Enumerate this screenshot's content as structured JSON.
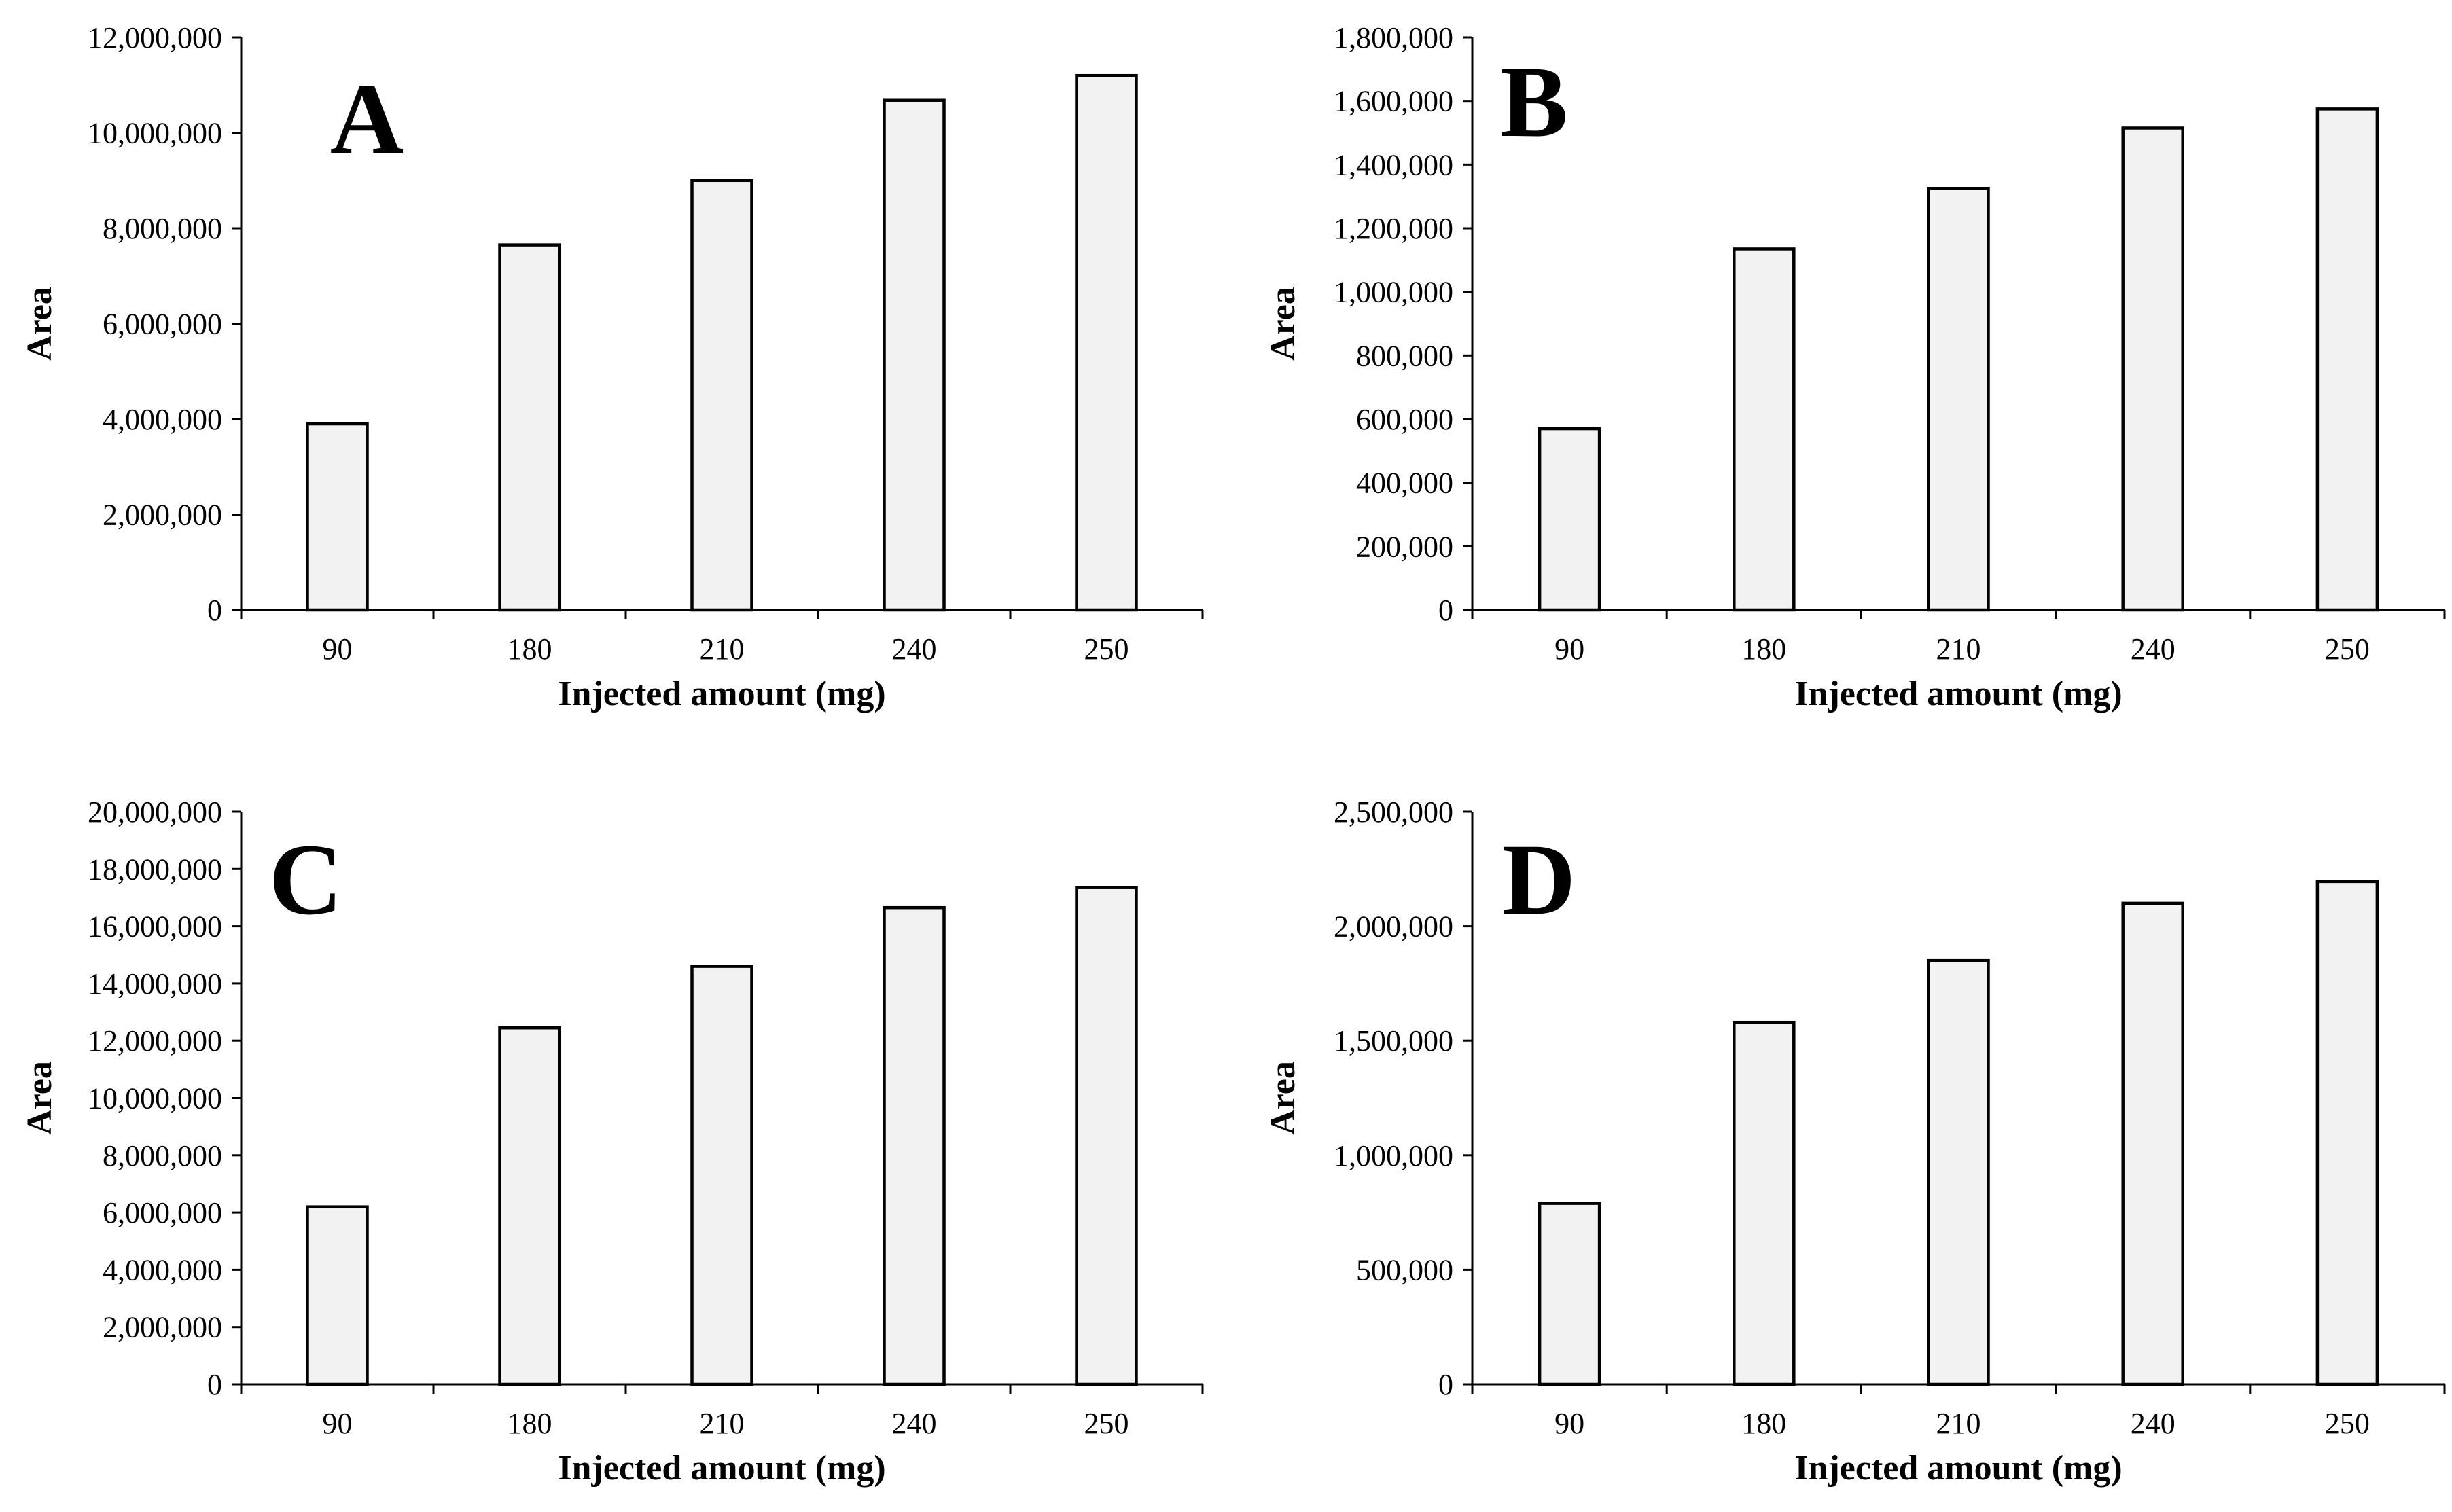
{
  "colors": {
    "bar_fill": "#f2f2f2",
    "bar_stroke": "#000000",
    "axis": "#000000",
    "background": "#ffffff"
  },
  "chart_data": [
    {
      "type": "bar",
      "panel_label": "A",
      "categories": [
        "90",
        "180",
        "210",
        "240",
        "250"
      ],
      "values": [
        3900000,
        7650000,
        9000000,
        10680000,
        11200000
      ],
      "xlabel": "Injected amount (mg)",
      "ylabel": "Area",
      "ylim": [
        0,
        12000000
      ],
      "yticks": [
        0,
        2000000,
        4000000,
        6000000,
        8000000,
        10000000,
        12000000
      ],
      "ytick_labels": [
        "0",
        "2,000,000",
        "4,000,000",
        "6,000,000",
        "8,000,000",
        "10,000,000",
        "12,000,000"
      ],
      "grid": false,
      "legend": "none"
    },
    {
      "type": "bar",
      "panel_label": "B",
      "categories": [
        "90",
        "180",
        "210",
        "240",
        "250"
      ],
      "values": [
        570000,
        1135000,
        1325000,
        1515000,
        1575000
      ],
      "xlabel": "Injected amount (mg)",
      "ylabel": "Area",
      "ylim": [
        0,
        1800000
      ],
      "yticks": [
        0,
        200000,
        400000,
        600000,
        800000,
        1000000,
        1200000,
        1400000,
        1600000,
        1800000
      ],
      "ytick_labels": [
        "0",
        "200,000",
        "400,000",
        "600,000",
        "800,000",
        "1,000,000",
        "1,200,000",
        "1,400,000",
        "1,600,000",
        "1,800,000"
      ],
      "grid": false,
      "legend": "none"
    },
    {
      "type": "bar",
      "panel_label": "C",
      "categories": [
        "90",
        "180",
        "210",
        "240",
        "250"
      ],
      "values": [
        6200000,
        12450000,
        14600000,
        16650000,
        17350000
      ],
      "xlabel": "Injected amount (mg)",
      "ylabel": "Area",
      "ylim": [
        0,
        20000000
      ],
      "yticks": [
        0,
        2000000,
        4000000,
        6000000,
        8000000,
        10000000,
        12000000,
        14000000,
        16000000,
        18000000,
        20000000
      ],
      "ytick_labels": [
        "0",
        "2,000,000",
        "4,000,000",
        "6,000,000",
        "8,000,000",
        "10,000,000",
        "12,000,000",
        "14,000,000",
        "16,000,000",
        "18,000,000",
        "20,000,000"
      ],
      "grid": false,
      "legend": "none"
    },
    {
      "type": "bar",
      "panel_label": "D",
      "categories": [
        "90",
        "180",
        "210",
        "240",
        "250"
      ],
      "values": [
        790000,
        1580000,
        1850000,
        2100000,
        2195000
      ],
      "xlabel": "Injected amount (mg)",
      "ylabel": "Area",
      "ylim": [
        0,
        2500000
      ],
      "yticks": [
        0,
        500000,
        1000000,
        1500000,
        2000000,
        2500000
      ],
      "ytick_labels": [
        "0",
        "500,000",
        "1,000,000",
        "1,500,000",
        "2,000,000",
        "2,500,000"
      ],
      "grid": false,
      "legend": "none"
    }
  ]
}
